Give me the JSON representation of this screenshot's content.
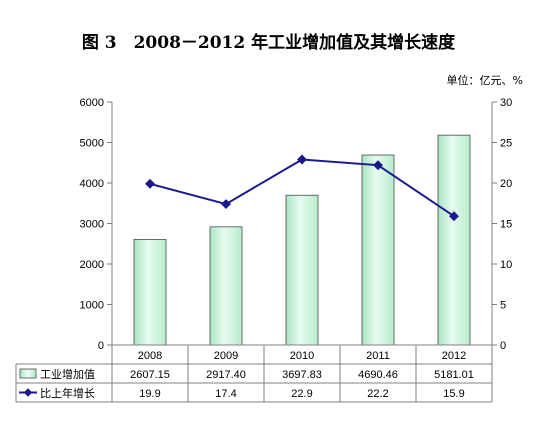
{
  "title": "图 3　2008－2012 年工业增加值及其增长速度",
  "unit_label": "单位：亿元、%",
  "chart_data": {
    "type": "bar",
    "categories": [
      "2008",
      "2009",
      "2010",
      "2011",
      "2012"
    ],
    "series": [
      {
        "name": "工业增加值",
        "kind": "bar",
        "axis": "left",
        "values": [
          2607.15,
          2917.4,
          3697.83,
          4690.46,
          5181.01
        ],
        "display": [
          "2607.15",
          "2917.40",
          "3697.83",
          "4690.46",
          "5181.01"
        ],
        "color": "#ccf2dd"
      },
      {
        "name": "比上年增长",
        "kind": "line",
        "axis": "right",
        "values": [
          19.9,
          17.4,
          22.9,
          22.2,
          15.9
        ],
        "display": [
          "19.9",
          "17.4",
          "22.9",
          "22.2",
          "15.9"
        ],
        "color": "#1a1a8c"
      }
    ],
    "y_left": {
      "min": 0,
      "max": 6000,
      "ticks": [
        "0",
        "1000",
        "2000",
        "3000",
        "4000",
        "5000",
        "6000"
      ]
    },
    "y_right": {
      "min": 0,
      "max": 30,
      "ticks": [
        "0",
        "5",
        "10",
        "15",
        "20",
        "25",
        "30"
      ]
    },
    "grid": false,
    "legend": "data-table"
  }
}
